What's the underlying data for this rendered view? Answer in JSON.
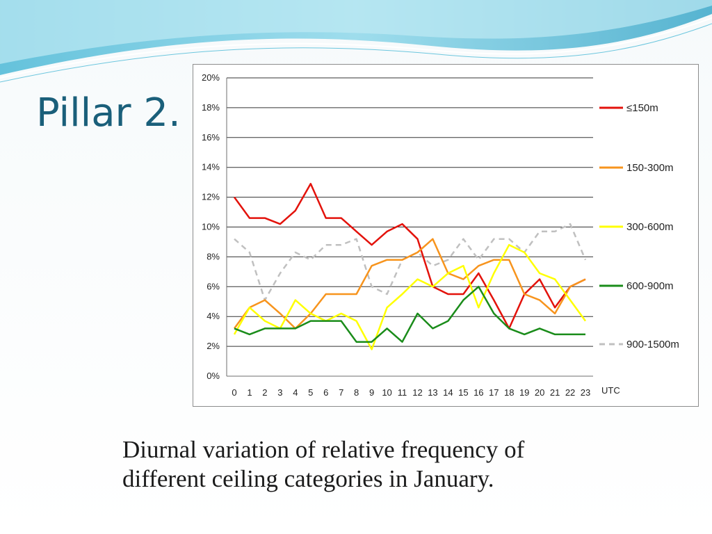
{
  "slide": {
    "title": "Pillar 2.",
    "caption": "Diurnal variation of relative frequency of different ceiling categories in January."
  },
  "chart_data": {
    "type": "line",
    "title": "",
    "xlabel": "UTC",
    "ylabel": "",
    "x": [
      0,
      1,
      2,
      3,
      4,
      5,
      6,
      7,
      8,
      9,
      10,
      11,
      12,
      13,
      14,
      15,
      16,
      17,
      18,
      19,
      20,
      21,
      22,
      23
    ],
    "ylim": [
      0,
      20
    ],
    "yticks": [
      "0%",
      "2%",
      "4%",
      "6%",
      "8%",
      "10%",
      "12%",
      "14%",
      "16%",
      "18%",
      "20%"
    ],
    "grid": true,
    "legend_position": "right",
    "series": [
      {
        "name": "≤150m",
        "color": "#e3120b",
        "dashed": false,
        "values": [
          12.0,
          10.6,
          10.6,
          10.2,
          11.1,
          12.9,
          10.6,
          10.6,
          9.7,
          8.8,
          9.7,
          10.2,
          9.2,
          6.0,
          5.5,
          5.5,
          6.9,
          5.1,
          3.2,
          5.5,
          6.5,
          4.6,
          6.0,
          6.5
        ]
      },
      {
        "name": "150-300m",
        "color": "#f7941d",
        "dashed": false,
        "values": [
          3.2,
          4.6,
          5.1,
          4.2,
          3.2,
          4.2,
          5.5,
          5.5,
          5.5,
          7.4,
          7.8,
          7.8,
          8.3,
          9.2,
          6.9,
          6.5,
          7.4,
          7.8,
          7.8,
          5.5,
          5.1,
          4.2,
          6.0,
          6.5
        ]
      },
      {
        "name": "300-600m",
        "color": "#ffff00",
        "dashed": false,
        "values": [
          2.8,
          4.6,
          3.7,
          3.2,
          5.1,
          4.2,
          3.7,
          4.2,
          3.7,
          1.8,
          4.6,
          5.5,
          6.5,
          6.0,
          6.9,
          7.4,
          4.6,
          6.9,
          8.8,
          8.3,
          6.9,
          6.5,
          5.1,
          3.7
        ]
      },
      {
        "name": "600-900m",
        "color": "#1a8c1a",
        "dashed": false,
        "values": [
          3.2,
          2.8,
          3.2,
          3.2,
          3.2,
          3.7,
          3.7,
          3.7,
          2.3,
          2.3,
          3.2,
          2.3,
          4.2,
          3.2,
          3.7,
          5.1,
          6.0,
          4.2,
          3.2,
          2.8,
          3.2,
          2.8,
          2.8,
          2.8
        ]
      },
      {
        "name": "900-1500m",
        "color": "#c0c0c0",
        "dashed": true,
        "values": [
          9.2,
          8.3,
          5.1,
          6.9,
          8.3,
          7.8,
          8.8,
          8.8,
          9.2,
          6.0,
          5.5,
          7.8,
          8.3,
          7.4,
          7.8,
          9.2,
          7.8,
          9.2,
          9.2,
          8.3,
          9.7,
          9.7,
          10.2,
          7.8
        ]
      }
    ]
  }
}
